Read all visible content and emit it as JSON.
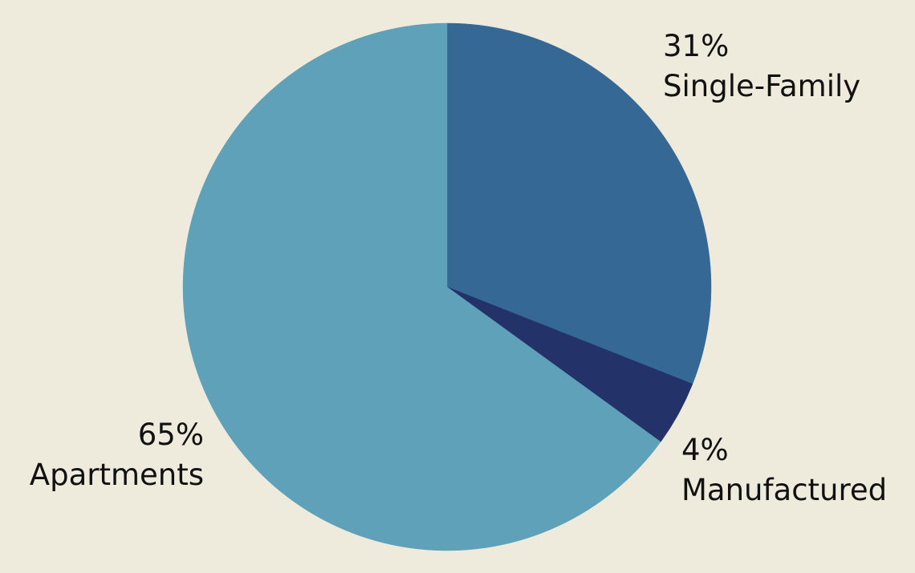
{
  "chart_data": {
    "type": "pie",
    "slices": [
      {
        "label": "Single-Family",
        "value": 31,
        "value_label": "31%",
        "color": "#356895"
      },
      {
        "label": "Manufactured",
        "value": 4,
        "value_label": "4%",
        "color": "#24326a"
      },
      {
        "label": "Apartments",
        "value": 65,
        "value_label": "65%",
        "color": "#5fa1b8"
      }
    ],
    "start_angle": "12 o'clock",
    "direction": "clockwise",
    "legend": "none (labels placed beside slices)"
  },
  "colors": {
    "background": "#efebdc",
    "label_text": "#111111"
  }
}
